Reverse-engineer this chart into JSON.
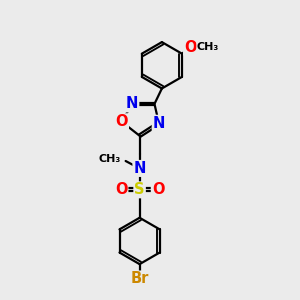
{
  "background_color": "#ebebeb",
  "bond_color": "#000000",
  "bond_width": 1.6,
  "atom_colors": {
    "N": "#0000ee",
    "O": "#ff0000",
    "S": "#cccc00",
    "Br": "#cc8800"
  },
  "font_size": 10.5
}
